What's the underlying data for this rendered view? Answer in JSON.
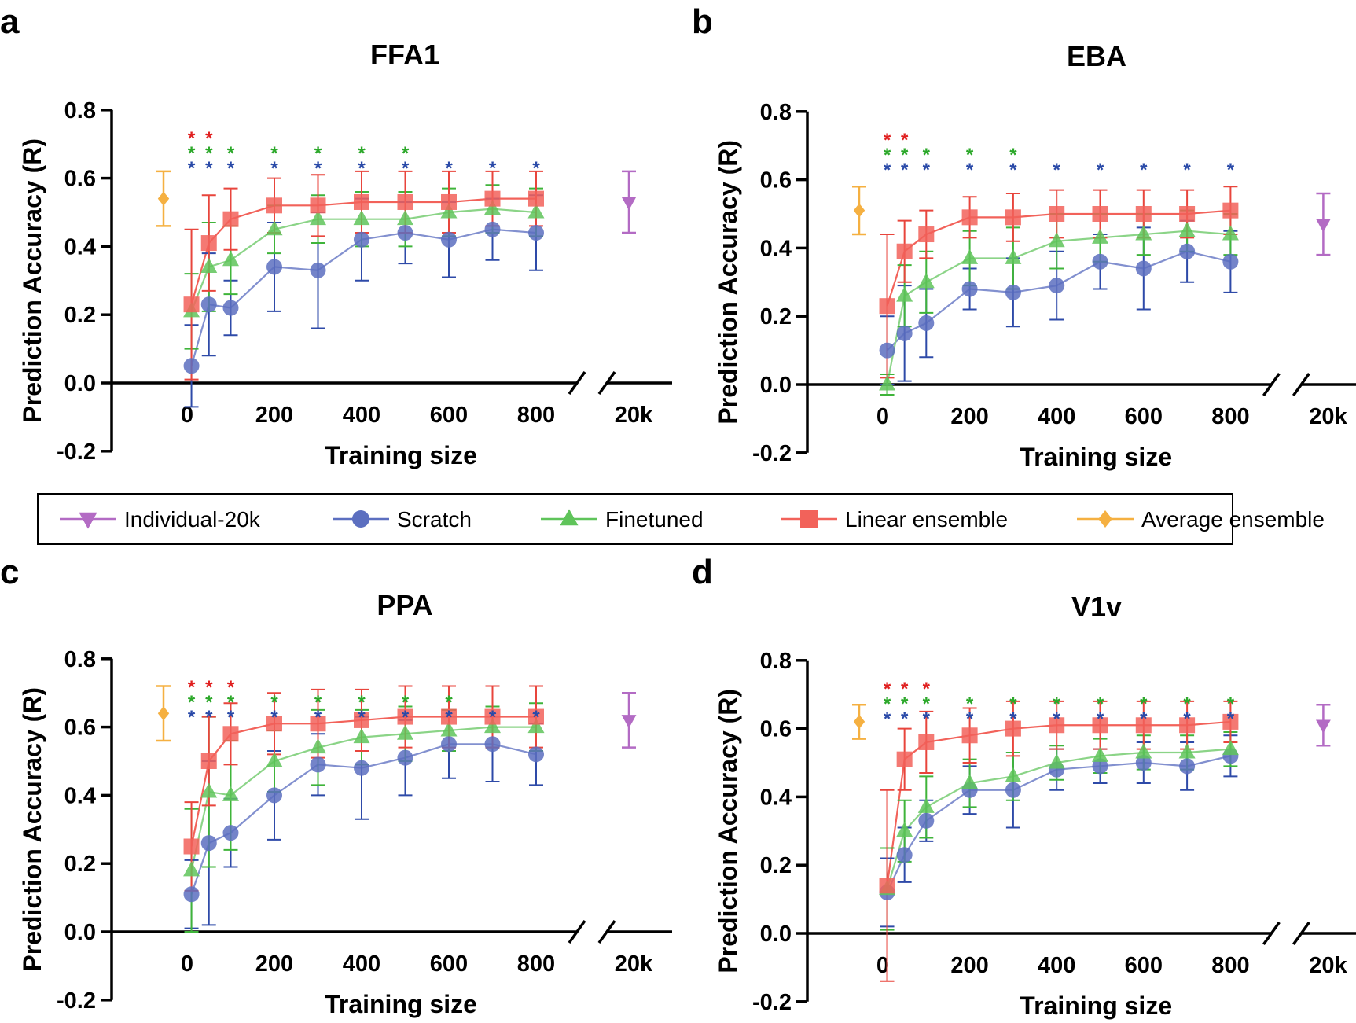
{
  "legend": [
    {
      "name": "Individual-20k",
      "marker": "triangle-down",
      "color": "#b36bc4"
    },
    {
      "name": "Scratch",
      "marker": "circle",
      "color": "#5c6fc0"
    },
    {
      "name": "Finetuned",
      "marker": "triangle-up",
      "color": "#5fc45a"
    },
    {
      "name": "Linear ensemble",
      "marker": "square",
      "color": "#f2625a"
    },
    {
      "name": "Average ensemble",
      "marker": "diamond",
      "color": "#f5b041"
    }
  ],
  "chart_data": [
    {
      "panel": "a",
      "title": "FFA1",
      "type": "line",
      "xlabel": "Training size",
      "ylabel": "Prediction Accuracy (R)",
      "x": [
        10,
        50,
        100,
        200,
        300,
        400,
        500,
        600,
        700,
        800
      ],
      "x_ticks": [
        "0",
        "200",
        "400",
        "600",
        "800"
      ],
      "x_break_label": "20k",
      "y_ticks": [
        "-0.2",
        "0.0",
        "0.2",
        "0.4",
        "0.6",
        "0.8"
      ],
      "ylim": [
        -0.2,
        0.8
      ],
      "series": [
        {
          "name": "Scratch",
          "y": [
            0.05,
            0.23,
            0.22,
            0.34,
            0.33,
            0.42,
            0.44,
            0.42,
            0.45,
            0.44
          ],
          "err": [
            0.12,
            0.15,
            0.08,
            0.13,
            0.17,
            0.12,
            0.09,
            0.11,
            0.09,
            0.11
          ]
        },
        {
          "name": "Finetuned",
          "y": [
            0.21,
            0.34,
            0.36,
            0.45,
            0.48,
            0.48,
            0.48,
            0.5,
            0.51,
            0.5
          ],
          "err": [
            0.11,
            0.13,
            0.1,
            0.07,
            0.07,
            0.08,
            0.08,
            0.07,
            0.07,
            0.07
          ]
        },
        {
          "name": "Linear ensemble",
          "y": [
            0.23,
            0.41,
            0.48,
            0.52,
            0.52,
            0.53,
            0.53,
            0.53,
            0.54,
            0.54
          ],
          "err": [
            0.22,
            0.14,
            0.09,
            0.08,
            0.09,
            0.09,
            0.09,
            0.09,
            0.08,
            0.08
          ]
        }
      ],
      "average_ensemble_20k": {
        "y": 0.54,
        "err": 0.08
      },
      "individual_20k": {
        "y": 0.53,
        "err": 0.09
      },
      "significance": {
        "Linear ensemble": [
          10,
          50
        ],
        "Finetuned": [
          10,
          50,
          100,
          200,
          300,
          400,
          500
        ],
        "Scratch": [
          10,
          50,
          100,
          200,
          300,
          400,
          500,
          600,
          700,
          800
        ]
      }
    },
    {
      "panel": "b",
      "title": "EBA",
      "type": "line",
      "xlabel": "Training size",
      "ylabel": "Prediction Accuracy (R)",
      "x": [
        10,
        50,
        100,
        200,
        300,
        400,
        500,
        600,
        700,
        800
      ],
      "x_ticks": [
        "0",
        "200",
        "400",
        "600",
        "800"
      ],
      "x_break_label": "20k",
      "y_ticks": [
        "-0.2",
        "0.0",
        "0.2",
        "0.4",
        "0.6",
        "0.8"
      ],
      "ylim": [
        -0.2,
        0.8
      ],
      "series": [
        {
          "name": "Scratch",
          "y": [
            0.1,
            0.15,
            0.18,
            0.28,
            0.27,
            0.29,
            0.36,
            0.34,
            0.39,
            0.36
          ],
          "err": [
            0.1,
            0.14,
            0.1,
            0.06,
            0.1,
            0.1,
            0.08,
            0.12,
            0.09,
            0.09
          ]
        },
        {
          "name": "Finetuned",
          "y": [
            0.0,
            0.26,
            0.3,
            0.37,
            0.37,
            0.42,
            0.43,
            0.44,
            0.45,
            0.44
          ],
          "err": [
            0.03,
            0.09,
            0.09,
            0.08,
            0.09,
            0.08,
            0.07,
            0.06,
            0.06,
            0.06
          ]
        },
        {
          "name": "Linear ensemble",
          "y": [
            0.23,
            0.39,
            0.44,
            0.49,
            0.49,
            0.5,
            0.5,
            0.5,
            0.5,
            0.51
          ],
          "err": [
            0.21,
            0.09,
            0.07,
            0.06,
            0.07,
            0.07,
            0.07,
            0.07,
            0.07,
            0.07
          ]
        }
      ],
      "average_ensemble_20k": {
        "y": 0.51,
        "err": 0.07
      },
      "individual_20k": {
        "y": 0.47,
        "err": 0.09
      },
      "significance": {
        "Linear ensemble": [
          10,
          50
        ],
        "Finetuned": [
          10,
          50,
          100,
          200,
          300
        ],
        "Scratch": [
          10,
          50,
          100,
          200,
          300,
          400,
          500,
          600,
          700,
          800
        ]
      }
    },
    {
      "panel": "c",
      "title": "PPA",
      "type": "line",
      "xlabel": "Training size",
      "ylabel": "Prediction Accuracy (R)",
      "x": [
        10,
        50,
        100,
        200,
        300,
        400,
        500,
        600,
        700,
        800
      ],
      "x_ticks": [
        "0",
        "200",
        "400",
        "600",
        "800"
      ],
      "x_break_label": "20k",
      "y_ticks": [
        "-0.2",
        "0.0",
        "0.2",
        "0.4",
        "0.6",
        "0.8"
      ],
      "ylim": [
        -0.2,
        0.8
      ],
      "series": [
        {
          "name": "Scratch",
          "y": [
            0.11,
            0.26,
            0.29,
            0.4,
            0.49,
            0.48,
            0.51,
            0.55,
            0.55,
            0.52
          ],
          "err": [
            0.1,
            0.24,
            0.1,
            0.13,
            0.09,
            0.15,
            0.11,
            0.1,
            0.11,
            0.09
          ]
        },
        {
          "name": "Finetuned",
          "y": [
            0.18,
            0.41,
            0.4,
            0.5,
            0.54,
            0.57,
            0.58,
            0.59,
            0.6,
            0.6
          ],
          "err": [
            0.18,
            0.22,
            0.16,
            0.09,
            0.11,
            0.08,
            0.08,
            0.06,
            0.06,
            0.07
          ]
        },
        {
          "name": "Linear ensemble",
          "y": [
            0.25,
            0.5,
            0.58,
            0.61,
            0.61,
            0.62,
            0.63,
            0.63,
            0.63,
            0.63
          ],
          "err": [
            0.13,
            0.13,
            0.09,
            0.09,
            0.1,
            0.09,
            0.09,
            0.09,
            0.09,
            0.09
          ]
        }
      ],
      "average_ensemble_20k": {
        "y": 0.64,
        "err": 0.08
      },
      "individual_20k": {
        "y": 0.62,
        "err": 0.08
      },
      "significance": {
        "Linear ensemble": [
          10,
          50,
          100
        ],
        "Finetuned": [
          10,
          50,
          100,
          200,
          300,
          400,
          500,
          600
        ],
        "Scratch": [
          10,
          50,
          100,
          200,
          300,
          400,
          500,
          600,
          700,
          800
        ]
      }
    },
    {
      "panel": "d",
      "title": "V1v",
      "type": "line",
      "xlabel": "Training size",
      "ylabel": "Prediction Accuracy (R)",
      "x": [
        10,
        50,
        100,
        200,
        300,
        400,
        500,
        600,
        700,
        800
      ],
      "x_ticks": [
        "0",
        "200",
        "400",
        "600",
        "800"
      ],
      "x_break_label": "20k",
      "y_ticks": [
        "-0.2",
        "0.0",
        "0.2",
        "0.4",
        "0.6",
        "0.8"
      ],
      "ylim": [
        -0.2,
        0.8
      ],
      "series": [
        {
          "name": "Scratch",
          "y": [
            0.12,
            0.23,
            0.33,
            0.42,
            0.42,
            0.48,
            0.49,
            0.5,
            0.49,
            0.52
          ],
          "err": [
            0.1,
            0.08,
            0.06,
            0.07,
            0.11,
            0.06,
            0.05,
            0.06,
            0.07,
            0.06
          ]
        },
        {
          "name": "Finetuned",
          "y": [
            0.13,
            0.3,
            0.37,
            0.44,
            0.46,
            0.5,
            0.52,
            0.53,
            0.53,
            0.54
          ],
          "err": [
            0.12,
            0.09,
            0.09,
            0.07,
            0.07,
            0.05,
            0.05,
            0.05,
            0.05,
            0.05
          ]
        },
        {
          "name": "Linear ensemble",
          "y": [
            0.14,
            0.51,
            0.56,
            0.58,
            0.6,
            0.61,
            0.61,
            0.61,
            0.61,
            0.62
          ],
          "err": [
            0.28,
            0.09,
            0.09,
            0.08,
            0.08,
            0.07,
            0.07,
            0.07,
            0.07,
            0.06
          ]
        }
      ],
      "average_ensemble_20k": {
        "y": 0.62,
        "err": 0.05
      },
      "individual_20k": {
        "y": 0.61,
        "err": 0.06
      },
      "significance": {
        "Linear ensemble": [
          10,
          50,
          100
        ],
        "Finetuned": [
          10,
          50,
          100,
          200,
          300,
          400,
          500,
          600,
          700,
          800
        ],
        "Scratch": [
          10,
          50,
          100,
          200,
          300,
          400,
          500,
          600,
          700,
          800
        ]
      }
    }
  ]
}
